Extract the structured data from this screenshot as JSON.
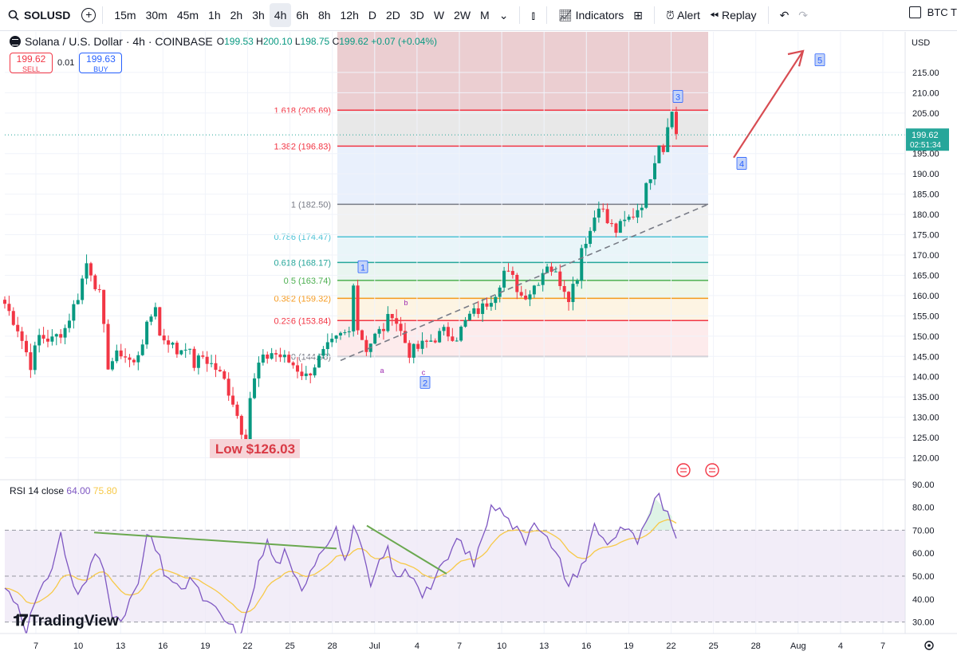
{
  "toolbar": {
    "symbol": "SOLUSD",
    "intervals": [
      "15m",
      "30m",
      "45m",
      "1h",
      "2h",
      "3h",
      "4h",
      "6h",
      "8h",
      "12h",
      "D",
      "2D",
      "3D",
      "W",
      "2W",
      "M"
    ],
    "active_interval": "4h",
    "indicators_label": "Indicators",
    "alert_label": "Alert",
    "replay_label": "Replay",
    "right_cut_label": "BTC T"
  },
  "legend": {
    "title": "Solana / U.S. Dollar · 4h · COINBASE",
    "o": "199.53",
    "h": "200.10",
    "l": "198.75",
    "c": "199.62",
    "change": "+0.07 (+0.04%)"
  },
  "trade": {
    "sell_price": "199.62",
    "sell_label": "SELL",
    "spread": "0.01",
    "buy_price": "199.63",
    "buy_label": "BUY"
  },
  "price_axis": {
    "currency": "USD",
    "last_price": "199.62",
    "countdown": "02:51:34"
  },
  "rsi": {
    "label": "RSI 14 close",
    "value": "64.00",
    "ma_value": "75.80"
  },
  "low_label": "Low $126.03",
  "watermark": "TradingView",
  "colors": {
    "up": "#089981",
    "down": "#f23645",
    "rsi": "#7e57c2",
    "rsi_ma": "#f7c948",
    "wave": "#2962ff",
    "trend": "#6aa84f"
  },
  "chart_data": {
    "type": "candlestick",
    "price_ylim": [
      115,
      225
    ],
    "price_ticks": [
      120,
      125,
      130,
      135,
      140,
      145,
      150,
      155,
      160,
      165,
      170,
      175,
      180,
      185,
      190,
      195,
      205,
      210,
      215
    ],
    "x_tick_labels": [
      "7",
      "10",
      "13",
      "16",
      "19",
      "22",
      "25",
      "28",
      "Jul",
      "4",
      "7",
      "10",
      "13",
      "16",
      "19",
      "22",
      "25",
      "28",
      "Aug",
      "4",
      "7"
    ],
    "rsi_ylim": [
      25,
      92
    ],
    "rsi_ticks": [
      30,
      40,
      50,
      60,
      70,
      80,
      90
    ],
    "rsi_levels": [
      70,
      50,
      30
    ],
    "fib_levels": [
      {
        "label": "1.618 (205.69)",
        "value": 205.69,
        "color": "#f23645"
      },
      {
        "label": "1.382 (196.83)",
        "value": 196.83,
        "color": "#f23645"
      },
      {
        "label": "1 (182.50)",
        "value": 182.5,
        "color": "#787b86"
      },
      {
        "label": "0.786 (174.47)",
        "value": 174.47,
        "color": "#4ec3d6"
      },
      {
        "label": "0.618 (168.17)",
        "value": 168.17,
        "color": "#26a69a"
      },
      {
        "label": "0.5 (163.74)",
        "value": 163.74,
        "color": "#4caf50"
      },
      {
        "label": "0.382 (159.32)",
        "value": 159.32,
        "color": "#f59a1f"
      },
      {
        "label": "0.236 (153.84)",
        "value": 153.84,
        "color": "#f23645"
      },
      {
        "label": "0 (144.98)",
        "value": 144.98,
        "color": "#787b86"
      }
    ],
    "elliott_labels": [
      "1",
      "2",
      "3",
      "4",
      "5"
    ],
    "abc_labels": [
      "a",
      "b",
      "c"
    ],
    "price_anchors": [
      [
        0,
        158
      ],
      [
        3,
        152
      ],
      [
        6,
        143
      ],
      [
        8,
        150
      ],
      [
        11,
        149
      ],
      [
        14,
        152
      ],
      [
        17,
        160
      ],
      [
        19,
        168
      ],
      [
        20,
        166
      ],
      [
        22,
        160
      ],
      [
        24,
        143
      ],
      [
        27,
        146
      ],
      [
        30,
        143
      ],
      [
        33,
        152
      ],
      [
        35,
        158
      ],
      [
        36,
        150
      ],
      [
        38,
        149
      ],
      [
        40,
        146
      ],
      [
        42,
        148
      ],
      [
        44,
        143
      ],
      [
        46,
        145
      ],
      [
        49,
        142
      ],
      [
        51,
        139
      ],
      [
        53,
        134
      ],
      [
        55,
        127
      ],
      [
        56,
        126
      ],
      [
        57,
        135
      ],
      [
        59,
        143
      ],
      [
        62,
        146
      ],
      [
        64,
        145
      ],
      [
        67,
        143
      ],
      [
        70,
        140
      ],
      [
        72,
        143
      ],
      [
        75,
        147
      ],
      [
        78,
        150
      ],
      [
        80,
        151
      ],
      [
        81,
        164
      ],
      [
        82,
        152
      ],
      [
        84,
        147
      ],
      [
        86,
        150
      ],
      [
        88,
        152
      ],
      [
        90,
        156
      ],
      [
        92,
        151
      ],
      [
        94,
        146
      ],
      [
        96,
        147
      ],
      [
        99,
        149
      ],
      [
        102,
        151
      ],
      [
        105,
        150
      ],
      [
        108,
        155
      ],
      [
        111,
        157
      ],
      [
        114,
        161
      ],
      [
        116,
        166
      ],
      [
        118,
        164
      ],
      [
        120,
        160
      ],
      [
        122,
        161
      ],
      [
        124,
        164
      ],
      [
        126,
        168
      ],
      [
        128,
        165
      ],
      [
        130,
        162
      ],
      [
        131,
        160
      ],
      [
        133,
        165
      ],
      [
        134,
        172
      ],
      [
        136,
        176
      ],
      [
        138,
        183
      ],
      [
        140,
        178
      ],
      [
        142,
        176
      ],
      [
        144,
        178
      ],
      [
        146,
        180
      ],
      [
        148,
        183
      ],
      [
        150,
        190
      ],
      [
        152,
        198
      ],
      [
        153,
        196
      ],
      [
        154,
        203
      ],
      [
        155,
        205
      ],
      [
        156,
        200
      ]
    ],
    "rsi_anchors": [
      [
        0,
        45
      ],
      [
        3,
        38
      ],
      [
        5,
        27
      ],
      [
        7,
        38
      ],
      [
        9,
        45
      ],
      [
        11,
        55
      ],
      [
        13,
        68
      ],
      [
        15,
        52
      ],
      [
        17,
        41
      ],
      [
        19,
        48
      ],
      [
        21,
        60
      ],
      [
        23,
        55
      ],
      [
        25,
        34
      ],
      [
        27,
        28
      ],
      [
        29,
        40
      ],
      [
        31,
        45
      ],
      [
        33,
        68
      ],
      [
        35,
        62
      ],
      [
        37,
        52
      ],
      [
        39,
        48
      ],
      [
        41,
        42
      ],
      [
        43,
        50
      ],
      [
        45,
        43
      ],
      [
        47,
        38
      ],
      [
        49,
        35
      ],
      [
        51,
        31
      ],
      [
        53,
        27
      ],
      [
        55,
        24
      ],
      [
        57,
        40
      ],
      [
        59,
        55
      ],
      [
        61,
        65
      ],
      [
        63,
        55
      ],
      [
        65,
        60
      ],
      [
        67,
        50
      ],
      [
        69,
        45
      ],
      [
        71,
        53
      ],
      [
        73,
        60
      ],
      [
        75,
        66
      ],
      [
        77,
        71
      ],
      [
        79,
        55
      ],
      [
        81,
        72
      ],
      [
        83,
        60
      ],
      [
        85,
        45
      ],
      [
        87,
        55
      ],
      [
        89,
        62
      ],
      [
        91,
        48
      ],
      [
        93,
        52
      ],
      [
        95,
        50
      ],
      [
        97,
        43
      ],
      [
        99,
        46
      ],
      [
        101,
        52
      ],
      [
        103,
        58
      ],
      [
        105,
        66
      ],
      [
        107,
        62
      ],
      [
        109,
        55
      ],
      [
        111,
        68
      ],
      [
        113,
        79
      ],
      [
        115,
        82
      ],
      [
        117,
        74
      ],
      [
        119,
        70
      ],
      [
        121,
        66
      ],
      [
        123,
        75
      ],
      [
        125,
        70
      ],
      [
        127,
        62
      ],
      [
        129,
        56
      ],
      [
        131,
        46
      ],
      [
        133,
        52
      ],
      [
        135,
        58
      ],
      [
        137,
        72
      ],
      [
        139,
        66
      ],
      [
        141,
        65
      ],
      [
        143,
        72
      ],
      [
        145,
        69
      ],
      [
        147,
        65
      ],
      [
        149,
        72
      ],
      [
        151,
        82
      ],
      [
        152,
        84
      ],
      [
        153,
        78
      ],
      [
        154,
        80
      ],
      [
        155,
        72
      ],
      [
        156,
        64
      ]
    ]
  }
}
